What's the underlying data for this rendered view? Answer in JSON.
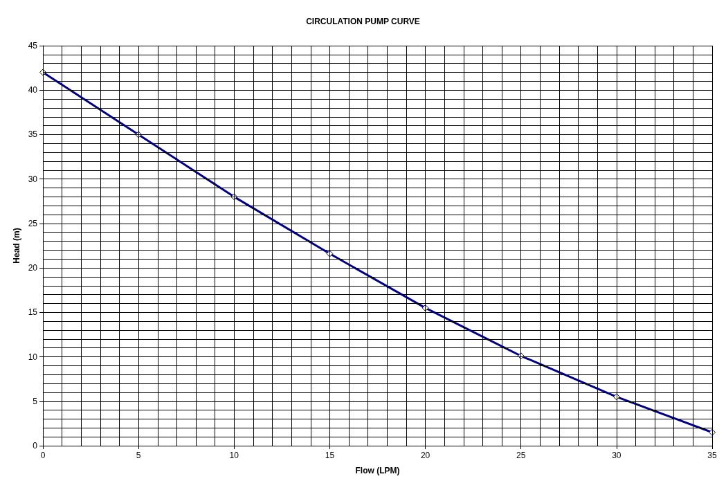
{
  "chart_data": {
    "type": "line",
    "title": "CIRCULATION PUMP CURVE",
    "xlabel": "Flow (LPM)",
    "ylabel": "Head (m)",
    "x": [
      0,
      5,
      10,
      15,
      20,
      25,
      30,
      35
    ],
    "series": [
      {
        "color": "#000080",
        "values": [
          42,
          35,
          28,
          21.6,
          15.5,
          10.1,
          5.5,
          1.5
        ]
      }
    ],
    "xlim": [
      0,
      35
    ],
    "ylim": [
      0,
      45
    ],
    "xticks": [
      0,
      {
        "value": 1,
        "label": null
      },
      {
        "value": 2,
        "label": null
      },
      {
        "value": 3,
        "label": null
      },
      {
        "value": 4,
        "label": null
      },
      5,
      {
        "value": 6,
        "label": null
      },
      {
        "value": 7,
        "label": null
      },
      {
        "value": 8,
        "label": null
      },
      {
        "value": 9,
        "label": null
      },
      10,
      {
        "value": 11,
        "label": null
      },
      {
        "value": 12,
        "label": null
      },
      {
        "value": 13,
        "label": null
      },
      {
        "value": 14,
        "label": null
      },
      15,
      {
        "value": 16,
        "label": null
      },
      {
        "value": 17,
        "label": null
      },
      {
        "value": 18,
        "label": null
      },
      {
        "value": 19,
        "label": null
      },
      20,
      {
        "value": 21,
        "label": null
      },
      {
        "value": 22,
        "label": null
      },
      {
        "value": 23,
        "label": null
      },
      {
        "value": 24,
        "label": null
      },
      25,
      {
        "value": 26,
        "label": null
      },
      {
        "value": 27,
        "label": null
      },
      {
        "value": 28,
        "label": null
      },
      {
        "value": 29,
        "label": null
      },
      30,
      {
        "value": 31,
        "label": null
      },
      {
        "value": 32,
        "label": null
      },
      {
        "value": 33,
        "label": null
      },
      {
        "value": 34,
        "label": null
      },
      35
    ],
    "yticks": [
      0,
      {
        "value": 1,
        "label": null
      },
      {
        "value": 2,
        "label": null
      },
      {
        "value": 3,
        "label": null
      },
      {
        "value": 4,
        "label": null
      },
      5,
      {
        "value": 6,
        "label": null
      },
      {
        "value": 7,
        "label": null
      },
      {
        "value": 8,
        "label": null
      },
      {
        "value": 9,
        "label": null
      },
      10,
      {
        "value": 11,
        "label": null
      },
      {
        "value": 12,
        "label": null
      },
      {
        "value": 13,
        "label": null
      },
      {
        "value": 14,
        "label": null
      },
      15,
      {
        "value": 16,
        "label": null
      },
      {
        "value": 17,
        "label": null
      },
      {
        "value": 18,
        "label": null
      },
      {
        "value": 19,
        "label": null
      },
      20,
      {
        "value": 21,
        "label": null
      },
      {
        "value": 22,
        "label": null
      },
      {
        "value": 23,
        "label": null
      },
      {
        "value": 24,
        "label": null
      },
      25,
      {
        "value": 26,
        "label": null
      },
      {
        "value": 27,
        "label": null
      },
      {
        "value": 28,
        "label": null
      },
      {
        "value": 29,
        "label": null
      },
      30,
      {
        "value": 31,
        "label": null
      },
      {
        "value": 32,
        "label": null
      },
      {
        "value": 33,
        "label": null
      },
      {
        "value": 34,
        "label": null
      },
      35,
      {
        "value": 36,
        "label": null
      },
      {
        "value": 37,
        "label": null
      },
      {
        "value": 38,
        "label": null
      },
      {
        "value": 39,
        "label": null
      },
      40,
      {
        "value": 41,
        "label": null
      },
      {
        "value": 42,
        "label": null
      },
      {
        "value": 43,
        "label": null
      },
      {
        "value": 44,
        "label": null
      },
      45
    ],
    "grid": true,
    "marker": "diamond",
    "line_style": "solid"
  }
}
